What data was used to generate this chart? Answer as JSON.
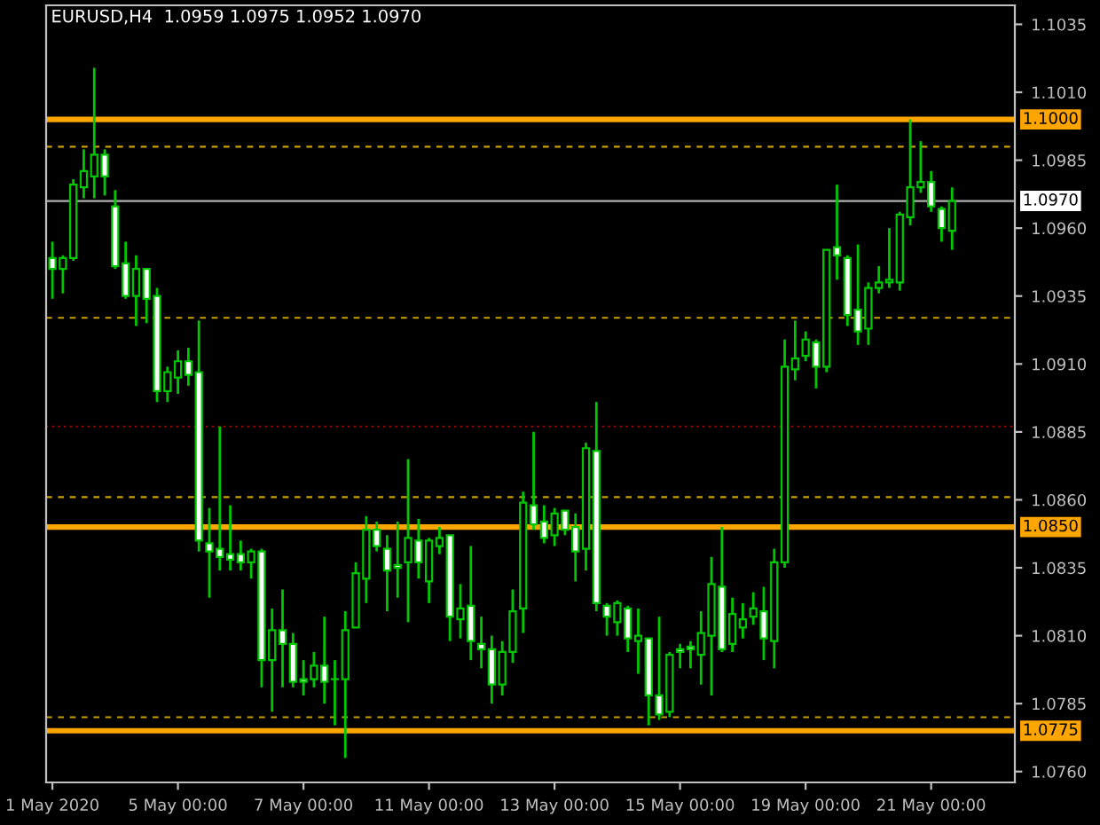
{
  "chart_data": {
    "type": "candlestick",
    "title": "EURUSD,H4  1.0959 1.0975 1.0952 1.0970",
    "categories": [
      "1 May 2020",
      null,
      null,
      null,
      null,
      null,
      null,
      null,
      null,
      null,
      null,
      null,
      "5 May 00:00",
      null,
      null,
      null,
      null,
      null,
      null,
      null,
      null,
      null,
      null,
      null,
      "7 May 00:00",
      null,
      null,
      null,
      null,
      null,
      null,
      null,
      null,
      null,
      null,
      null,
      "11 May 00:00",
      null,
      null,
      null,
      null,
      null,
      null,
      null,
      null,
      null,
      null,
      null,
      "13 May 00:00",
      null,
      null,
      null,
      null,
      null,
      null,
      null,
      null,
      null,
      null,
      null,
      "15 May 00:00",
      null,
      null,
      null,
      null,
      null,
      null,
      null,
      null,
      null,
      null,
      null,
      "19 May 00:00",
      null,
      null,
      null,
      null,
      null,
      null,
      null,
      null,
      null,
      null,
      null,
      "21 May 00:00",
      null,
      null
    ],
    "color": "#00c800",
    "ohlc": [
      [
        1.0949,
        1.0955,
        1.0934,
        1.0945
      ],
      [
        1.0945,
        1.095,
        1.0936,
        1.0949
      ],
      [
        1.0949,
        1.0978,
        1.0948,
        1.0976
      ],
      [
        1.0975,
        1.0989,
        1.0971,
        1.0981
      ],
      [
        1.0979,
        1.1019,
        1.0971,
        1.0987
      ],
      [
        1.0987,
        1.0989,
        1.0972,
        1.0979
      ],
      [
        1.0968,
        1.0974,
        1.0945,
        1.0946
      ],
      [
        1.0947,
        1.0955,
        1.0934,
        1.0935
      ],
      [
        1.0935,
        1.095,
        1.0924,
        1.0945
      ],
      [
        1.0945,
        1.0945,
        1.0925,
        1.0934
      ],
      [
        1.0935,
        1.0938,
        1.0896,
        1.09
      ],
      [
        1.09,
        1.0909,
        1.0896,
        1.0907
      ],
      [
        1.0905,
        1.0915,
        1.0899,
        1.0911
      ],
      [
        1.0911,
        1.0916,
        1.0902,
        1.0906
      ],
      [
        1.0907,
        1.0926,
        1.0841,
        1.0845
      ],
      [
        1.0844,
        1.0857,
        1.0824,
        1.0841
      ],
      [
        1.0842,
        1.0887,
        1.0834,
        1.0839
      ],
      [
        1.084,
        1.0858,
        1.0834,
        1.0838
      ],
      [
        1.084,
        1.0845,
        1.0834,
        1.0837
      ],
      [
        1.0837,
        1.0842,
        1.0831,
        1.0841
      ],
      [
        1.0841,
        1.0842,
        1.0791,
        1.0801
      ],
      [
        1.0801,
        1.082,
        1.0782,
        1.0812
      ],
      [
        1.0812,
        1.0827,
        1.0791,
        1.0807
      ],
      [
        1.0807,
        1.0811,
        1.0791,
        1.0793
      ],
      [
        1.0794,
        1.0801,
        1.0788,
        1.0793
      ],
      [
        1.0794,
        1.0804,
        1.0791,
        1.0799
      ],
      [
        1.0799,
        1.0817,
        1.0785,
        1.0793
      ],
      [
        1.0794,
        1.0801,
        1.0777,
        1.0794
      ],
      [
        1.0794,
        1.0819,
        1.0765,
        1.0812
      ],
      [
        1.0813,
        1.0837,
        1.0813,
        1.0833
      ],
      [
        1.0831,
        1.0854,
        1.0822,
        1.0849
      ],
      [
        1.0849,
        1.0852,
        1.0841,
        1.0843
      ],
      [
        1.0842,
        1.0847,
        1.0819,
        1.0834
      ],
      [
        1.0836,
        1.0852,
        1.0824,
        1.0835
      ],
      [
        1.0837,
        1.0875,
        1.0815,
        1.0846
      ],
      [
        1.0845,
        1.0853,
        1.0831,
        1.0837
      ],
      [
        1.083,
        1.0846,
        1.0822,
        1.0845
      ],
      [
        1.0843,
        1.085,
        1.084,
        1.0846
      ],
      [
        1.0847,
        1.0847,
        1.0808,
        1.0817
      ],
      [
        1.0816,
        1.0829,
        1.0809,
        1.082
      ],
      [
        1.0821,
        1.0843,
        1.0801,
        1.0808
      ],
      [
        1.0807,
        1.0817,
        1.0798,
        1.0805
      ],
      [
        1.0805,
        1.081,
        1.0785,
        1.0792
      ],
      [
        1.0792,
        1.0808,
        1.0788,
        1.0804
      ],
      [
        1.0804,
        1.0827,
        1.08,
        1.0819
      ],
      [
        1.082,
        1.0863,
        1.0811,
        1.0859
      ],
      [
        1.0858,
        1.0885,
        1.0849,
        1.0851
      ],
      [
        1.0852,
        1.0858,
        1.0844,
        1.0846
      ],
      [
        1.0847,
        1.0857,
        1.0843,
        1.0855
      ],
      [
        1.0856,
        1.0856,
        1.0847,
        1.0849
      ],
      [
        1.085,
        1.0855,
        1.083,
        1.0841
      ],
      [
        1.0842,
        1.0881,
        1.0834,
        1.0879
      ],
      [
        1.0878,
        1.0896,
        1.0819,
        1.0822
      ],
      [
        1.0821,
        1.0822,
        1.081,
        1.0817
      ],
      [
        1.0815,
        1.0823,
        1.081,
        1.0822
      ],
      [
        1.082,
        1.0821,
        1.0804,
        1.0809
      ],
      [
        1.0808,
        1.082,
        1.0796,
        1.081
      ],
      [
        1.0809,
        1.0809,
        1.0777,
        1.0788
      ],
      [
        1.0788,
        1.0817,
        1.0779,
        1.0781
      ],
      [
        1.0782,
        1.0804,
        1.078,
        1.0803
      ],
      [
        1.0805,
        1.0807,
        1.0798,
        1.0804
      ],
      [
        1.0806,
        1.0808,
        1.0798,
        1.0805
      ],
      [
        1.0803,
        1.0819,
        1.0792,
        1.0811
      ],
      [
        1.081,
        1.0839,
        1.0788,
        1.0829
      ],
      [
        1.0828,
        1.085,
        1.0804,
        1.0805
      ],
      [
        1.0807,
        1.0824,
        1.0804,
        1.0818
      ],
      [
        1.0813,
        1.0822,
        1.0809,
        1.0816
      ],
      [
        1.0817,
        1.0826,
        1.0814,
        1.082
      ],
      [
        1.0819,
        1.0828,
        1.0801,
        1.0809
      ],
      [
        1.0808,
        1.0842,
        1.0798,
        1.0837
      ],
      [
        1.0837,
        1.0919,
        1.0835,
        1.0909
      ],
      [
        1.0908,
        1.0926,
        1.0904,
        1.0912
      ],
      [
        1.0913,
        1.0922,
        1.0911,
        1.0919
      ],
      [
        1.0918,
        1.0919,
        1.0901,
        1.0909
      ],
      [
        1.0909,
        1.0952,
        1.0907,
        1.0952
      ],
      [
        1.0953,
        1.0976,
        1.0941,
        1.095
      ],
      [
        1.0949,
        1.095,
        1.0924,
        1.0928
      ],
      [
        1.093,
        1.0954,
        1.0917,
        1.0922
      ],
      [
        1.0923,
        1.094,
        1.0917,
        1.0938
      ],
      [
        1.0938,
        1.0946,
        1.0936,
        1.094
      ],
      [
        1.094,
        1.096,
        1.0938,
        1.0941
      ],
      [
        1.094,
        1.0966,
        1.0937,
        1.0965
      ],
      [
        1.0964,
        1.1,
        1.0961,
        1.0975
      ],
      [
        1.0975,
        1.0992,
        1.0973,
        1.0977
      ],
      [
        1.0977,
        1.0981,
        1.0966,
        1.0968
      ],
      [
        1.0967,
        1.0968,
        1.0955,
        1.096
      ],
      [
        1.0959,
        1.0975,
        1.0952,
        1.097
      ]
    ],
    "ylim": [
      1.0756,
      1.1042
    ],
    "yticks": [
      {
        "value": 1.076,
        "label": "1.0760"
      },
      {
        "value": 1.0785,
        "label": "1.0785"
      },
      {
        "value": 1.081,
        "label": "1.0810"
      },
      {
        "value": 1.0835,
        "label": "1.0835"
      },
      {
        "value": 1.086,
        "label": "1.0860"
      },
      {
        "value": 1.0885,
        "label": "1.0885"
      },
      {
        "value": 1.091,
        "label": "1.0910"
      },
      {
        "value": 1.0935,
        "label": "1.0935"
      },
      {
        "value": 1.096,
        "label": "1.0960"
      },
      {
        "value": 1.0985,
        "label": "1.0985"
      },
      {
        "value": 1.101,
        "label": "1.1010"
      },
      {
        "value": 1.1035,
        "label": "1.1035"
      }
    ],
    "ref_lines": [
      {
        "axis": "y",
        "value": 1.1,
        "label": "1.1000",
        "color": "#ffa500",
        "line_style": "solid"
      },
      {
        "axis": "y",
        "value": 1.085,
        "label": "1.0850",
        "color": "#ffa500",
        "line_style": "solid"
      },
      {
        "axis": "y",
        "value": 1.0775,
        "label": "1.0775",
        "color": "#ffa500",
        "line_style": "solid"
      },
      {
        "axis": "y",
        "value": 1.097,
        "label": "1.0970",
        "color": "#b0b0b0",
        "line_style": "solid"
      },
      {
        "axis": "y",
        "value": 1.099,
        "color": "#c8a000",
        "line_style": "dashed"
      },
      {
        "axis": "y",
        "value": 1.0927,
        "color": "#c8a000",
        "line_style": "dashed"
      },
      {
        "axis": "y",
        "value": 1.0887,
        "color": "#b00000",
        "line_style": "dotted"
      },
      {
        "axis": "y",
        "value": 1.0861,
        "color": "#c8a000",
        "line_style": "dashed"
      },
      {
        "axis": "y",
        "value": 1.078,
        "color": "#c8a000",
        "line_style": "dashed"
      }
    ],
    "grid": false
  }
}
